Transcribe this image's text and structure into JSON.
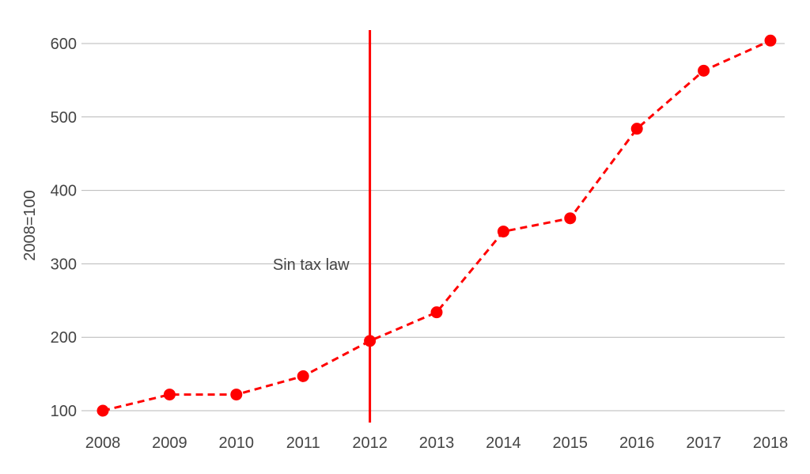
{
  "chart_data": {
    "type": "line",
    "title": "",
    "xlabel": "",
    "ylabel": "2008=100",
    "categories": [
      "2008",
      "2009",
      "2010",
      "2011",
      "2012",
      "2013",
      "2014",
      "2015",
      "2016",
      "2017",
      "2018"
    ],
    "series": [
      {
        "values": [
          100,
          122,
          122,
          147,
          195,
          234,
          344,
          362,
          484,
          563,
          604
        ],
        "color": "#ff0000",
        "line_style": "dashed",
        "marker": "circle"
      }
    ],
    "yticks": [
      "100",
      "200",
      "300",
      "400",
      "500",
      "600"
    ],
    "ylim": [
      100,
      600
    ],
    "grid": true,
    "legend": "none",
    "annotations": [
      {
        "text": "Sin tax law",
        "x": "2012",
        "type": "vertical-line",
        "color": "#ff0000"
      }
    ]
  }
}
